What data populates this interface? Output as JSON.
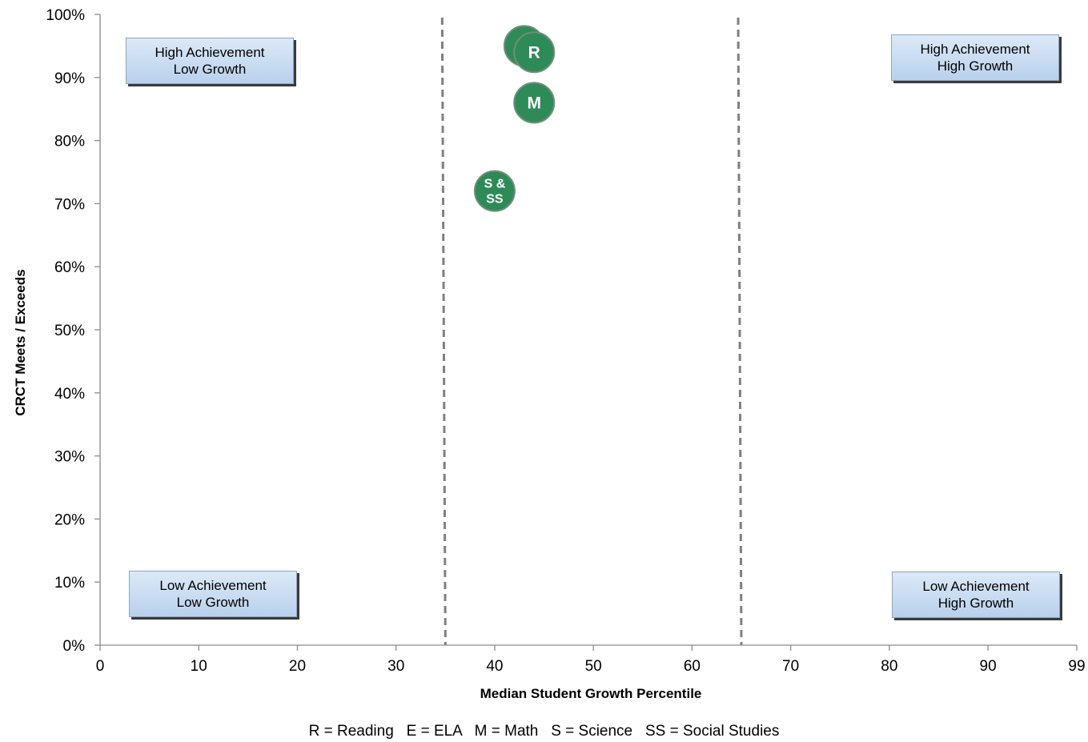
{
  "chart_data": {
    "type": "scatter",
    "xlabel": "Median Student Growth Percentile",
    "ylabel": "CRCT Meets / Exceeds",
    "xlim": [
      0,
      99
    ],
    "ylim": [
      0,
      100
    ],
    "x_ticks": [
      {
        "value": 0,
        "label": "0"
      },
      {
        "value": 10,
        "label": "10"
      },
      {
        "value": 20,
        "label": "20"
      },
      {
        "value": 30,
        "label": "30"
      },
      {
        "value": 40,
        "label": "40"
      },
      {
        "value": 50,
        "label": "50"
      },
      {
        "value": 60,
        "label": "60"
      },
      {
        "value": 70,
        "label": "70"
      },
      {
        "value": 80,
        "label": "80"
      },
      {
        "value": 90,
        "label": "90"
      },
      {
        "value": 99,
        "label": "99"
      }
    ],
    "y_ticks": [
      {
        "value": 0,
        "label": "0%"
      },
      {
        "value": 10,
        "label": "10%"
      },
      {
        "value": 20,
        "label": "20%"
      },
      {
        "value": 30,
        "label": "30%"
      },
      {
        "value": 40,
        "label": "40%"
      },
      {
        "value": 50,
        "label": "50%"
      },
      {
        "value": 60,
        "label": "60%"
      },
      {
        "value": 70,
        "label": "70%"
      },
      {
        "value": 80,
        "label": "80%"
      },
      {
        "value": 90,
        "label": "90%"
      },
      {
        "value": 100,
        "label": "100%"
      }
    ],
    "reference_lines_x": [
      35,
      65
    ],
    "grid": false,
    "points": [
      {
        "label": "E",
        "x": 43,
        "y": 95
      },
      {
        "label": "R",
        "x": 44,
        "y": 94
      },
      {
        "label": "M",
        "x": 44,
        "y": 86
      },
      {
        "label": "S & SS",
        "x": 40,
        "y": 72
      }
    ],
    "point_color": "#2e8b57",
    "point_edge_color": "#6f8f7a",
    "reference_line_color": "#7f7f7f",
    "quadrant_labels": [
      {
        "line1": "High Achievement",
        "line2": "Low Growth",
        "position": "top-left"
      },
      {
        "line1": "High Achievement",
        "line2": "High Growth",
        "position": "top-right"
      },
      {
        "line1": "Low Achievement",
        "line2": "Low Growth",
        "position": "bottom-left"
      },
      {
        "line1": "Low Achievement",
        "line2": "High Growth",
        "position": "bottom-right"
      }
    ],
    "footnote": "R = Reading   E = ELA   M = Math   S = Science   SS = Social Studies"
  }
}
